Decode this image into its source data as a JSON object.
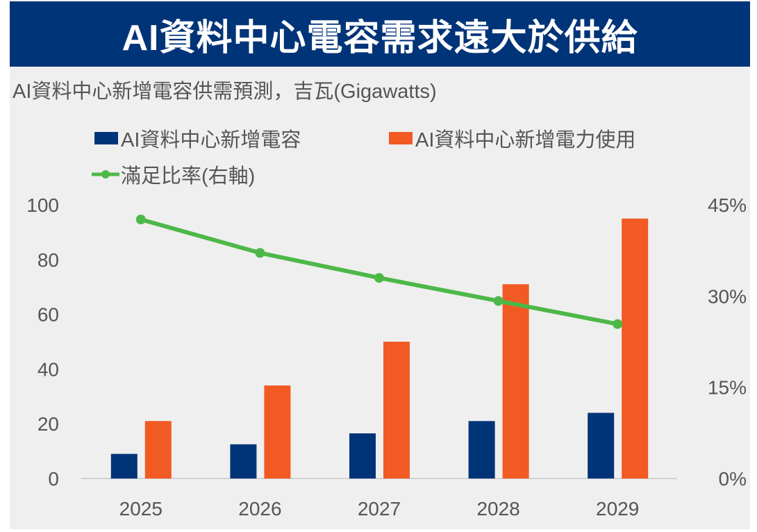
{
  "title": "AI資料中心電容需求遠大於供給",
  "colors": {
    "capacity": "#003478",
    "usage": "#f15a22",
    "ratio": "#4db848"
  },
  "chart_data": {
    "type": "bar",
    "title": "AI資料中心電容需求遠大於供給",
    "subtitle": "AI資料中心新增電容供需預測，吉瓦(Gigawatts)",
    "categories": [
      "2025",
      "2026",
      "2027",
      "2028",
      "2029"
    ],
    "series": [
      {
        "name": "AI資料中心新增電容",
        "type": "bar",
        "axis": "left",
        "values": [
          9,
          12.5,
          16.5,
          21,
          24
        ]
      },
      {
        "name": "AI資料中心新增電力使用",
        "type": "bar",
        "axis": "left",
        "values": [
          21,
          34,
          50,
          71,
          95
        ]
      },
      {
        "name": "滿足比率(右軸)",
        "type": "line",
        "axis": "right",
        "values": [
          42.6,
          37.1,
          33.0,
          29.2,
          25.4
        ]
      }
    ],
    "ylim": [
      0,
      100
    ],
    "yticks": [
      "0",
      "20",
      "40",
      "60",
      "80",
      "100"
    ],
    "y2lim": [
      0,
      45
    ],
    "y2ticks": [
      "0%",
      "15%",
      "30%",
      "45%"
    ],
    "legend_position": "top-left",
    "grid": false
  }
}
